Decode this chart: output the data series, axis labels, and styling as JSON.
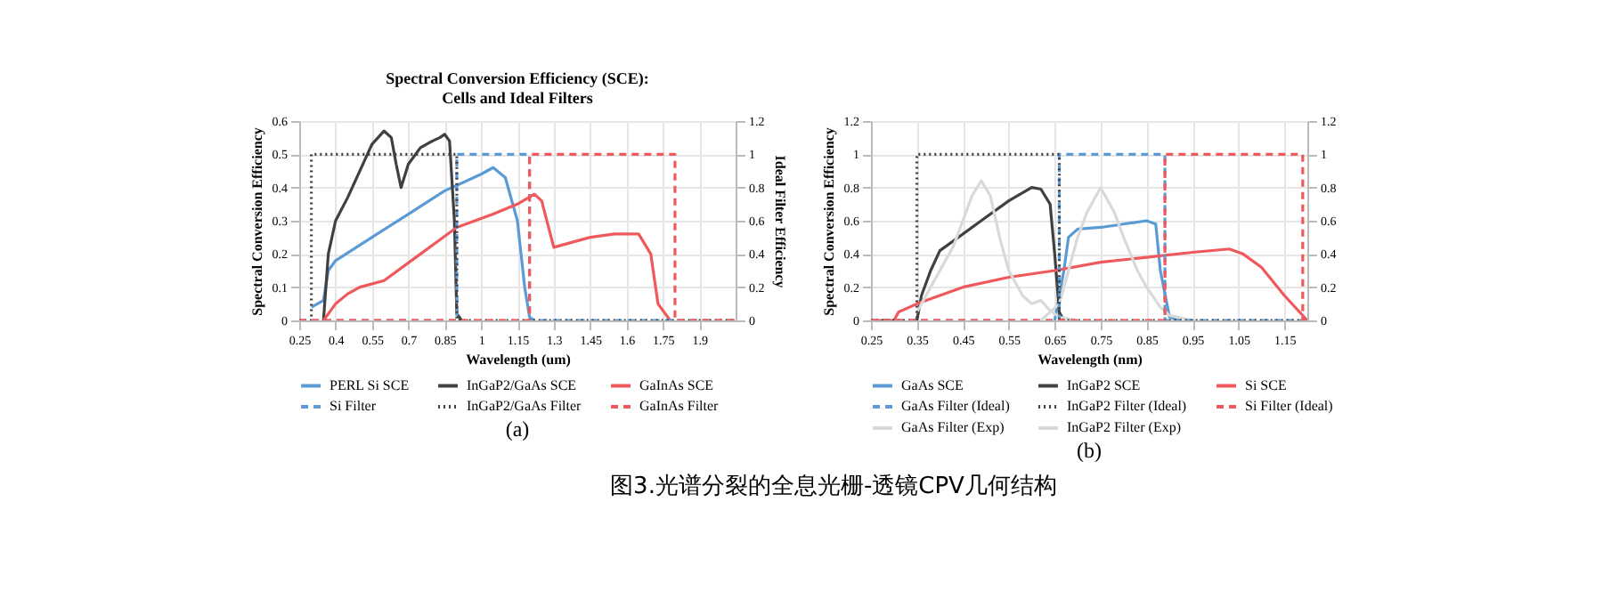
{
  "chart_data": [
    {
      "type": "line",
      "title": "Spectral Conversion Efficiency (SCE):\nCells and Ideal Filters",
      "xlabel": "Wavelength (um)",
      "ylabel": "Spectral Conversion Efficiency",
      "y2label": "Ideal Filter Efficiency",
      "xlim": [
        0.25,
        2.05
      ],
      "xticks": [
        0.25,
        0.4,
        0.55,
        0.7,
        0.85,
        1,
        1.15,
        1.3,
        1.45,
        1.6,
        1.75,
        1.9
      ],
      "ylim": [
        0,
        0.6
      ],
      "yticks": [
        0,
        0.1,
        0.2,
        0.3,
        0.4,
        0.5,
        0.6
      ],
      "y2lim": [
        0,
        1.2
      ],
      "y2ticks": [
        0,
        0.2,
        0.4,
        0.6,
        0.8,
        1,
        1.2
      ],
      "grid": true,
      "legend": "bottom",
      "annotations": [
        "(a)",
        "图3.光谱分裂的全息光栅-透镜CPV几何结构"
      ],
      "series": [
        {
          "name": "PERL Si SCE",
          "color": "#5b9bd5",
          "line_style": "solid",
          "x": [
            0.3,
            0.35,
            0.37,
            0.4,
            0.55,
            0.7,
            0.85,
            1.0,
            1.05,
            1.1,
            1.15,
            1.18,
            1.2,
            1.22
          ],
          "values": [
            0.04,
            0.06,
            0.15,
            0.18,
            0.25,
            0.32,
            0.39,
            0.44,
            0.46,
            0.43,
            0.3,
            0.1,
            0.01,
            0
          ]
        },
        {
          "name": "InGaP2/GaAs SCE",
          "color": "#404040",
          "line_style": "solid",
          "x": [
            0.35,
            0.37,
            0.4,
            0.45,
            0.55,
            0.6,
            0.63,
            0.65,
            0.67,
            0.7,
            0.75,
            0.8,
            0.83,
            0.85,
            0.87,
            0.89,
            0.9,
            0.92
          ],
          "values": [
            0,
            0.2,
            0.3,
            0.37,
            0.53,
            0.57,
            0.55,
            0.47,
            0.4,
            0.47,
            0.52,
            0.54,
            0.55,
            0.56,
            0.54,
            0.3,
            0.02,
            0
          ]
        },
        {
          "name": "GaInAs SCE",
          "color": "#f0595c",
          "line_style": "solid",
          "x": [
            0.35,
            0.4,
            0.45,
            0.5,
            0.6,
            0.75,
            0.9,
            1.05,
            1.15,
            1.22,
            1.25,
            1.3,
            1.35,
            1.45,
            1.55,
            1.65,
            1.7,
            1.73,
            1.78
          ],
          "values": [
            0,
            0.05,
            0.08,
            0.1,
            0.12,
            0.2,
            0.28,
            0.32,
            0.35,
            0.38,
            0.36,
            0.22,
            0.23,
            0.25,
            0.26,
            0.26,
            0.2,
            0.05,
            0
          ]
        },
        {
          "name": "Si Filter",
          "color": "#5b9bd5",
          "line_style": "dashed",
          "axis": "y2",
          "x": [
            0.25,
            0.9,
            0.9,
            1.2,
            1.2,
            2.05
          ],
          "values": [
            0,
            0,
            1,
            1,
            0,
            0
          ]
        },
        {
          "name": "InGaP2/GaAs Filter",
          "color": "#404040",
          "line_style": "dotted",
          "axis": "y2",
          "x": [
            0.25,
            0.3,
            0.3,
            0.9,
            0.9,
            2.05
          ],
          "values": [
            0,
            0,
            1,
            1,
            0,
            0
          ]
        },
        {
          "name": "GaInAs Filter",
          "color": "#f0595c",
          "line_style": "dashed",
          "axis": "y2",
          "x": [
            0.25,
            1.2,
            1.2,
            1.8,
            1.8,
            2.05
          ],
          "values": [
            0,
            0,
            1,
            1,
            0,
            0
          ]
        }
      ]
    },
    {
      "type": "line",
      "xlabel": "Wavelength (nm)",
      "ylabel": "Spectral Conversion Efficiency",
      "xlim": [
        0.25,
        1.2
      ],
      "xticks": [
        0.25,
        0.35,
        0.45,
        0.55,
        0.65,
        0.75,
        0.85,
        0.95,
        1.05,
        1.15
      ],
      "ylim": [
        0,
        1.2
      ],
      "yticks": [
        0,
        0.2,
        0.4,
        0.6,
        0.8,
        1,
        1.2
      ],
      "y2lim": [
        0,
        1.2
      ],
      "y2ticks": [
        0,
        0.2,
        0.4,
        0.6,
        0.8,
        1,
        1.2
      ],
      "grid": true,
      "legend": "bottom",
      "annotations": [
        "(b)"
      ],
      "series": [
        {
          "name": "GaAs SCE",
          "color": "#5b9bd5",
          "line_style": "solid",
          "x": [
            0.65,
            0.67,
            0.68,
            0.7,
            0.75,
            0.8,
            0.85,
            0.87,
            0.88,
            0.9,
            0.92
          ],
          "values": [
            0,
            0.3,
            0.5,
            0.55,
            0.56,
            0.58,
            0.6,
            0.58,
            0.3,
            0.02,
            0
          ]
        },
        {
          "name": "InGaP2 SCE",
          "color": "#404040",
          "line_style": "solid",
          "x": [
            0.35,
            0.36,
            0.38,
            0.4,
            0.45,
            0.5,
            0.55,
            0.6,
            0.62,
            0.64,
            0.65,
            0.66,
            0.67
          ],
          "values": [
            0,
            0.15,
            0.3,
            0.42,
            0.52,
            0.62,
            0.72,
            0.8,
            0.79,
            0.7,
            0.4,
            0.05,
            0
          ]
        },
        {
          "name": "Si SCE",
          "color": "#f0595c",
          "line_style": "solid",
          "x": [
            0.25,
            0.3,
            0.31,
            0.35,
            0.45,
            0.55,
            0.65,
            0.75,
            0.85,
            0.95,
            1.03,
            1.06,
            1.1,
            1.15,
            1.2
          ],
          "values": [
            0,
            0,
            0.05,
            0.1,
            0.2,
            0.26,
            0.3,
            0.35,
            0.38,
            0.41,
            0.43,
            0.4,
            0.32,
            0.15,
            0
          ]
        },
        {
          "name": "GaAs Filter (Ideal)",
          "color": "#5b9bd5",
          "line_style": "dashed",
          "axis": "y2",
          "x": [
            0.25,
            0.66,
            0.66,
            0.89,
            0.89,
            1.2
          ],
          "values": [
            0,
            0,
            1,
            1,
            0,
            0
          ]
        },
        {
          "name": "InGaP2 Filter (Ideal)",
          "color": "#404040",
          "line_style": "dotted",
          "axis": "y2",
          "x": [
            0.25,
            0.35,
            0.35,
            0.66,
            0.66,
            1.2
          ],
          "values": [
            0,
            0,
            1,
            1,
            0,
            0
          ]
        },
        {
          "name": "Si Filter (Ideal)",
          "color": "#f0595c",
          "line_style": "dashed",
          "axis": "y2",
          "x": [
            0.25,
            0.89,
            0.89,
            1.19,
            1.19,
            1.2
          ],
          "values": [
            0,
            0,
            1,
            1,
            0,
            0
          ]
        },
        {
          "name": "GaAs Filter (Exp)",
          "color": "#d9d9d9",
          "line_style": "solid",
          "x": [
            0.62,
            0.66,
            0.68,
            0.7,
            0.72,
            0.75,
            0.78,
            0.8,
            0.83,
            0.85,
            0.88,
            0.9,
            0.95
          ],
          "values": [
            0,
            0.1,
            0.3,
            0.5,
            0.65,
            0.8,
            0.65,
            0.5,
            0.3,
            0.2,
            0.08,
            0.03,
            0
          ]
        },
        {
          "name": "InGaP2 Filter (Exp)",
          "color": "#d9d9d9",
          "line_style": "solid",
          "x": [
            0.35,
            0.38,
            0.4,
            0.43,
            0.45,
            0.47,
            0.49,
            0.51,
            0.53,
            0.55,
            0.58,
            0.6,
            0.62,
            0.64,
            0.66,
            0.7
          ],
          "values": [
            0.05,
            0.2,
            0.3,
            0.45,
            0.6,
            0.75,
            0.84,
            0.75,
            0.5,
            0.3,
            0.15,
            0.1,
            0.12,
            0.06,
            0.02,
            0
          ]
        }
      ]
    }
  ]
}
